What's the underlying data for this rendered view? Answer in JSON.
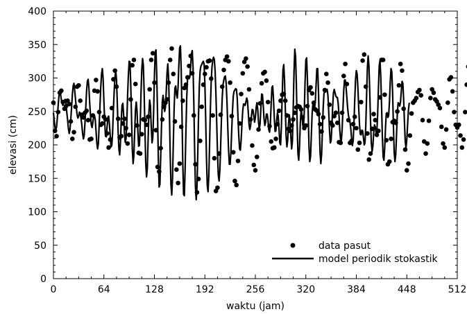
{
  "chart_data": {
    "type": "line",
    "xlabel": "waktu (jam)",
    "ylabel": "elevasi (cm)",
    "xlim": [
      0,
      512
    ],
    "ylim": [
      0,
      400
    ],
    "xticks": [
      0,
      64,
      128,
      192,
      256,
      320,
      384,
      448,
      512
    ],
    "yticks": [
      0,
      50,
      100,
      150,
      200,
      250,
      300,
      350,
      400
    ],
    "grid": false,
    "legend_position": "lower-right",
    "series": [
      {
        "name": "data pasut",
        "style": "markers",
        "color": "#000000",
        "t_step": 2,
        "y": [
          263,
          221,
          213,
          249,
          278,
          281,
          264,
          254,
          258,
          266,
          261,
          235,
          209,
          219,
          257,
          287,
          289,
          266,
          245,
          241,
          248,
          251,
          237,
          208,
          209,
          244,
          281,
          297,
          280,
          249,
          230,
          232,
          242,
          238,
          217,
          196,
          208,
          255,
          298,
          311,
          287,
          239,
          211,
          213,
          232,
          239,
          225,
          202,
          215,
          268,
          319,
          327,
          291,
          229,
          188,
          187,
          216,
          238,
          237,
          230,
          242,
          283,
          327,
          337,
          293,
          222,
          167,
          160,
          195,
          238,
          257,
          263,
          268,
          293,
          327,
          344,
          306,
          235,
          163,
          143,
          172,
          227,
          266,
          285,
          290,
          301,
          318,
          333,
          307,
          244,
          171,
          129,
          149,
          206,
          257,
          290,
          306,
          316,
          325,
          326,
          299,
          244,
          180,
          131,
          136,
          187,
          245,
          287,
          312,
          327,
          332,
          325,
          293,
          243,
          189,
          146,
          140,
          176,
          232,
          276,
          307,
          324,
          329,
          317,
          283,
          238,
          199,
          170,
          162,
          182,
          223,
          262,
          292,
          307,
          309,
          296,
          264,
          228,
          205,
          195,
          196,
          209,
          231,
          251,
          266,
          275,
          276,
          266,
          244,
          224,
          221,
          229,
          238,
          248,
          256,
          258,
          257,
          253,
          241,
          225,
          229,
          258,
          282,
          286,
          277,
          263,
          253,
          251,
          246,
          231,
          220,
          241,
          282,
          306,
          293,
          260,
          233,
          229,
          243,
          248,
          233,
          204,
          203,
          248,
          303,
          321,
          291,
          237,
          203,
          206,
          231,
          242,
          225,
          193,
          203,
          264,
          326,
          335,
          287,
          217,
          178,
          187,
          224,
          246,
          237,
          215,
          221,
          271,
          327,
          327,
          275,
          207,
          171,
          175,
          209,
          234,
          236,
          233,
          250,
          289,
          321,
          311,
          254,
          193,
          162,
          172,
          214,
          247,
          263,
          266,
          270,
          279,
          282,
          274,
          237,
          205,
          187,
          202,
          236,
          270,
          283,
          278,
          268,
          265,
          260,
          255,
          227,
          202,
          196,
          223,
          263,
          298,
          301,
          280,
          249,
          230,
          226,
          230,
          214,
          196,
          208,
          249,
          290,
          317,
          301,
          264,
          225,
          205,
          207,
          225,
          218,
          201,
          219,
          265,
          309,
          322,
          291,
          237,
          191,
          181,
          201,
          228,
          230,
          221,
          236,
          280,
          317,
          317,
          278,
          220,
          184,
          180,
          207,
          236,
          242,
          235,
          243,
          274,
          305,
          308,
          272,
          222,
          186,
          186,
          205,
          237,
          251,
          249,
          248,
          262,
          286,
          294,
          274,
          239,
          206,
          196,
          206,
          232,
          255,
          258,
          254,
          255,
          264,
          273,
          262
        ]
      },
      {
        "name": "model periodik stokastik",
        "style": "line",
        "color": "#000000",
        "t_step": 1,
        "y": [
          248,
          237,
          226,
          222,
          227,
          241,
          259,
          273,
          279,
          276,
          268,
          262,
          259,
          263,
          267,
          268,
          260,
          248,
          237,
          224,
          217,
          223,
          238,
          256,
          275,
          288,
          292,
          281,
          268,
          256,
          245,
          240,
          243,
          249,
          247,
          239,
          230,
          217,
          209,
          214,
          233,
          256,
          280,
          295,
          298,
          285,
          262,
          244,
          230,
          226,
          234,
          243,
          244,
          238,
          221,
          203,
          194,
          202,
          231,
          258,
          286,
          306,
          314,
          299,
          265,
          235,
          213,
          212,
          226,
          241,
          243,
          231,
          214,
          197,
          199,
          218,
          252,
          280,
          301,
          311,
          297,
          262,
          220,
          194,
          185,
          204,
          238,
          259,
          262,
          245,
          219,
          204,
          209,
          232,
          273,
          304,
          325,
          324,
          291,
          242,
          194,
          172,
          184,
          219,
          252,
          264,
          250,
          221,
          198,
          199,
          230,
          276,
          312,
          329,
          319,
          279,
          224,
          174,
          152,
          164,
          206,
          248,
          267,
          258,
          227,
          203,
          211,
          248,
          301,
          338,
          342,
          304,
          245,
          179,
          137,
          141,
          182,
          228,
          264,
          274,
          263,
          250,
          256,
          279,
          307,
          321,
          301,
          251,
          188,
          140,
          125,
          150,
          203,
          254,
          285,
          288,
          275,
          270,
          286,
          319,
          345,
          348,
          312,
          245,
          172,
          126,
          124,
          166,
          222,
          271,
          298,
          303,
          299,
          302,
          318,
          336,
          341,
          316,
          262,
          193,
          138,
          118,
          137,
          188,
          246,
          289,
          311,
          318,
          320,
          323,
          325,
          321,
          292,
          241,
          182,
          140,
          130,
          154,
          202,
          255,
          294,
          316,
          327,
          331,
          327,
          310,
          276,
          233,
          188,
          155,
          146,
          162,
          198,
          239,
          271,
          290,
          297,
          302,
          303,
          292,
          265,
          228,
          193,
          171,
          171,
          189,
          221,
          251,
          273,
          280,
          282,
          284,
          283,
          270,
          241,
          213,
          194,
          192,
          208,
          231,
          251,
          261,
          261,
          259,
          264,
          270,
          266,
          249,
          230,
          223,
          229,
          243,
          253,
          252,
          243,
          234,
          241,
          256,
          263,
          253,
          234,
          223,
          232,
          255,
          276,
          275,
          259,
          239,
          229,
          234,
          246,
          246,
          237,
          223,
          219,
          231,
          260,
          286,
          288,
          268,
          241,
          220,
          221,
          236,
          248,
          243,
          224,
          203,
          200,
          227,
          272,
          312,
          320,
          296,
          253,
          213,
          197,
          207,
          232,
          245,
          236,
          213,
          194,
          206,
          254,
          309,
          343,
          332,
          289,
          230,
          187,
          177,
          198,
          233,
          252,
          246,
          230,
          225,
          249,
          293,
          327,
          330,
          298,
          247,
          197,
          175,
          183,
          216,
          247,
          262,
          258,
          254,
          264,
          290,
          314,
          314,
          281,
          234,
          189,
          172,
          186,
          221,
          256,
          277,
          280,
          279,
          281,
          283,
          274,
          250,
          222,
          203,
          206,
          227,
          257,
          278,
          283,
          278,
          273,
          271,
          271,
          262,
          245,
          223,
          208,
          206,
          223,
          252,
          280,
          297,
          297,
          286,
          271,
          255,
          244,
          239,
          234,
          224,
          210,
          199,
          206,
          232,
          267,
          297,
          311,
          306,
          285,
          256,
          231,
          216,
          215,
          222,
          221,
          211,
          200,
          203,
          229,
          273,
          315,
          333,
          318,
          280,
          236,
          203,
          190,
          198,
          218,
          230,
          227,
          218,
          219,
          244,
          283,
          318,
          326,
          302,
          259,
          213,
          182,
          177,
          196,
          226,
          247,
          248,
          241,
          244,
          264,
          294,
          314,
          309,
          278,
          230,
          189,
          175,
          186,
          216,
          247,
          263,
          262,
          258,
          264,
          280,
          295,
          292,
          268,
          234,
          205,
          196,
          208,
          230,
          251,
          262,
          262
        ]
      }
    ],
    "legend": [
      {
        "label": "data pasut",
        "marker": "dot"
      },
      {
        "label": "model periodik stokastik",
        "marker": "line"
      }
    ]
  }
}
